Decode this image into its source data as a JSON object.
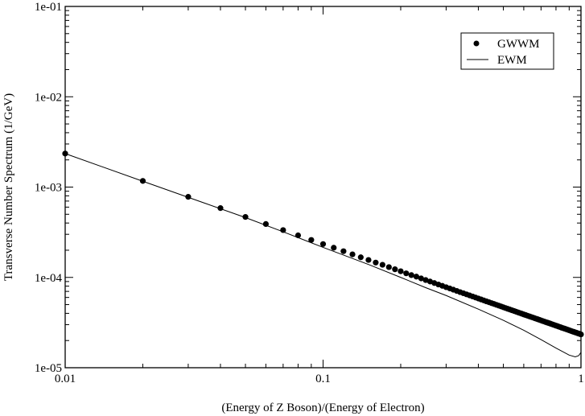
{
  "chart_data": {
    "type": "scatter",
    "title": "",
    "xlabel": "(Energy of Z Boson)/(Energy of Electron)",
    "ylabel": "Transverse Number Spectrum (1/GeV)",
    "x_scale": "log",
    "y_scale": "log",
    "xlim": [
      0.01,
      1
    ],
    "ylim": [
      1e-05,
      0.1
    ],
    "x_ticks": [
      {
        "value": 0.01,
        "label": "0.01"
      },
      {
        "value": 0.1,
        "label": "0.1"
      },
      {
        "value": 1,
        "label": "1"
      }
    ],
    "y_ticks": [
      {
        "value": 1e-05,
        "label": "1e-05"
      },
      {
        "value": 0.0001,
        "label": "1e-04"
      },
      {
        "value": 0.001,
        "label": "1e-03"
      },
      {
        "value": 0.01,
        "label": "1e-02"
      },
      {
        "value": 0.1,
        "label": "1e-01"
      }
    ],
    "grid": false,
    "legend_position": "top-right",
    "series": [
      {
        "name": "GWWM",
        "style": "markers",
        "color": "#000000",
        "points": [
          [
            0.01,
            0.00235
          ],
          [
            0.02,
            0.00117
          ],
          [
            0.03,
            0.00078
          ],
          [
            0.04,
            0.000585
          ],
          [
            0.05,
            0.000467
          ],
          [
            0.06,
            0.00039
          ],
          [
            0.07,
            0.000334
          ],
          [
            0.08,
            0.000292
          ],
          [
            0.09,
            0.00026
          ],
          [
            0.1,
            0.000234
          ],
          [
            0.11,
            0.000213
          ],
          [
            0.12,
            0.000195
          ],
          [
            0.13,
            0.00018
          ],
          [
            0.14,
            0.000167
          ],
          [
            0.15,
            0.000156
          ],
          [
            0.16,
            0.000146
          ],
          [
            0.17,
            0.000138
          ],
          [
            0.18,
            0.00013
          ],
          [
            0.19,
            0.000123
          ],
          [
            0.2,
            0.000117
          ],
          [
            0.21,
            0.000111
          ],
          [
            0.22,
            0.000106
          ],
          [
            0.23,
            0.000102
          ],
          [
            0.24,
            9.75e-05
          ],
          [
            0.25,
            9.35e-05
          ],
          [
            0.26,
            9e-05
          ],
          [
            0.27,
            8.66e-05
          ],
          [
            0.28,
            8.35e-05
          ],
          [
            0.29,
            8.06e-05
          ],
          [
            0.3,
            7.79e-05
          ],
          [
            0.31,
            7.54e-05
          ],
          [
            0.32,
            7.31e-05
          ],
          [
            0.33,
            7.08e-05
          ],
          [
            0.34,
            6.87e-05
          ],
          [
            0.35,
            6.68e-05
          ],
          [
            0.36,
            6.49e-05
          ],
          [
            0.37,
            6.32e-05
          ],
          [
            0.38,
            6.15e-05
          ],
          [
            0.39,
            5.99e-05
          ],
          [
            0.4,
            5.84e-05
          ],
          [
            0.41,
            5.7e-05
          ],
          [
            0.42,
            5.56e-05
          ],
          [
            0.43,
            5.43e-05
          ],
          [
            0.44,
            5.31e-05
          ],
          [
            0.45,
            5.19e-05
          ],
          [
            0.46,
            5.08e-05
          ],
          [
            0.47,
            4.97e-05
          ],
          [
            0.48,
            4.87e-05
          ],
          [
            0.49,
            4.77e-05
          ],
          [
            0.5,
            4.67e-05
          ],
          [
            0.51,
            4.58e-05
          ],
          [
            0.52,
            4.49e-05
          ],
          [
            0.53,
            4.41e-05
          ],
          [
            0.54,
            4.33e-05
          ],
          [
            0.55,
            4.25e-05
          ],
          [
            0.56,
            4.17e-05
          ],
          [
            0.57,
            4.1e-05
          ],
          [
            0.58,
            4.03e-05
          ],
          [
            0.59,
            3.96e-05
          ],
          [
            0.6,
            3.89e-05
          ],
          [
            0.61,
            3.83e-05
          ],
          [
            0.62,
            3.77e-05
          ],
          [
            0.63,
            3.71e-05
          ],
          [
            0.64,
            3.65e-05
          ],
          [
            0.65,
            3.6e-05
          ],
          [
            0.66,
            3.54e-05
          ],
          [
            0.67,
            3.49e-05
          ],
          [
            0.68,
            3.44e-05
          ],
          [
            0.69,
            3.39e-05
          ],
          [
            0.7,
            3.34e-05
          ],
          [
            0.71,
            3.29e-05
          ],
          [
            0.72,
            3.25e-05
          ],
          [
            0.73,
            3.2e-05
          ],
          [
            0.74,
            3.16e-05
          ],
          [
            0.75,
            3.12e-05
          ],
          [
            0.76,
            3.08e-05
          ],
          [
            0.77,
            3.04e-05
          ],
          [
            0.78,
            3e-05
          ],
          [
            0.79,
            2.96e-05
          ],
          [
            0.8,
            2.92e-05
          ],
          [
            0.81,
            2.89e-05
          ],
          [
            0.82,
            2.85e-05
          ],
          [
            0.83,
            2.82e-05
          ],
          [
            0.84,
            2.78e-05
          ],
          [
            0.85,
            2.75e-05
          ],
          [
            0.86,
            2.72e-05
          ],
          [
            0.87,
            2.69e-05
          ],
          [
            0.88,
            2.66e-05
          ],
          [
            0.89,
            2.63e-05
          ],
          [
            0.9,
            2.6e-05
          ],
          [
            0.91,
            2.57e-05
          ],
          [
            0.92,
            2.54e-05
          ],
          [
            0.93,
            2.51e-05
          ],
          [
            0.94,
            2.49e-05
          ],
          [
            0.95,
            2.46e-05
          ],
          [
            0.96,
            2.44e-05
          ],
          [
            0.97,
            2.41e-05
          ],
          [
            0.98,
            2.39e-05
          ],
          [
            0.99,
            2.36e-05
          ],
          [
            1.0,
            2.34e-05
          ]
        ]
      },
      {
        "name": "EWM",
        "style": "line",
        "color": "#000000",
        "points": [
          [
            0.01,
            0.00235
          ],
          [
            0.02,
            0.00116
          ],
          [
            0.03,
            0.00077
          ],
          [
            0.05,
            0.00046
          ],
          [
            0.07,
            0.00032
          ],
          [
            0.1,
            0.000215
          ],
          [
            0.15,
            0.000139
          ],
          [
            0.2,
            0.0001
          ],
          [
            0.25,
            7.7e-05
          ],
          [
            0.3,
            6.3e-05
          ],
          [
            0.4,
            4.45e-05
          ],
          [
            0.5,
            3.35e-05
          ],
          [
            0.6,
            2.6e-05
          ],
          [
            0.7,
            2.05e-05
          ],
          [
            0.8,
            1.65e-05
          ],
          [
            0.9,
            1.38e-05
          ],
          [
            0.95,
            1.32e-05
          ],
          [
            0.98,
            1.36e-05
          ],
          [
            1.0,
            1.48e-05
          ]
        ]
      }
    ]
  }
}
